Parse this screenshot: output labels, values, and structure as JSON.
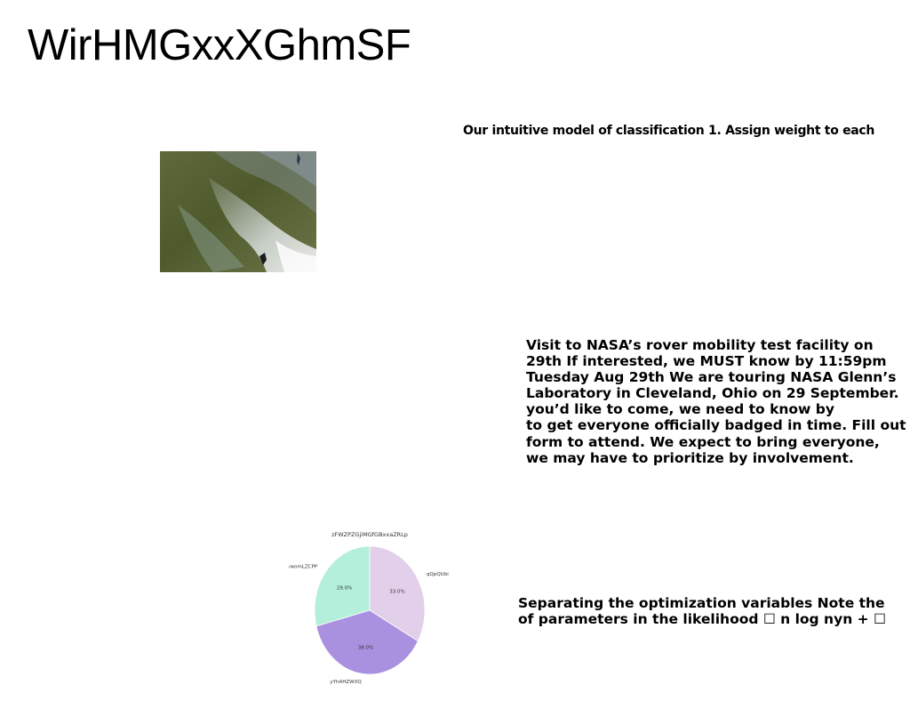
{
  "title": "WirHMGxxXGhmSF",
  "caption": "Our intuitive model of classification 1. Assign weight to each",
  "paragraph_lines": [
    "Visit to NASA’s rover mobility test facility on",
    "29th If interested, we MUST know by 11:59pm",
    "Tuesday Aug 29th We are touring NASA Glenn’s",
    "Laboratory in Cleveland, Ohio on 29 September.",
    "you’d like to come, we need to know by",
    "to get everyone officially badged in time. Fill out",
    "form to attend. We expect to bring everyone,",
    "we may have to prioritize by involvement."
  ],
  "paragraph2_lines": [
    "Separating the optimization variables Note the",
    "of parameters in the likelihood ☐ n log nyn + ☐"
  ],
  "chart_data": {
    "type": "pie",
    "title": "zFWZPZGjiMGfGBxxaZRLp",
    "slices": [
      {
        "label": "qQpQUbi",
        "value": 33.0,
        "display": "33.0%",
        "color": "#e2cfea"
      },
      {
        "label": "yYhAHZWXQ",
        "value": 38.0,
        "display": "38.0%",
        "color": "#a991e0"
      },
      {
        "label": "ywomLZCPP",
        "value": 29.0,
        "display": "29.0%",
        "color": "#b3efda"
      }
    ],
    "start_angle_deg": 90,
    "direction": "clockwise"
  }
}
